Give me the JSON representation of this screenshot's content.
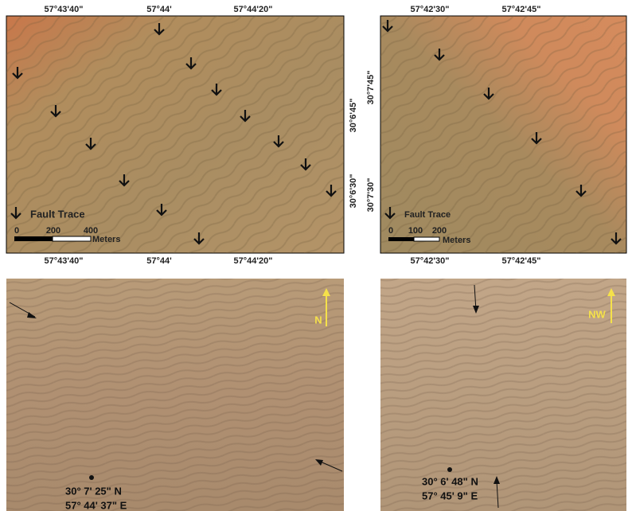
{
  "panels": [
    {
      "top_ticks": [
        "57°43'40\"",
        "57°44'",
        "57°44'20\""
      ],
      "bottom_ticks": [
        "57°43'40\"",
        "57°44'",
        "57°44'20\""
      ],
      "side_ticks": [
        "30°6'45\"",
        "30°6'30\""
      ],
      "legend": "Fault Trace",
      "scale_labels": [
        "0",
        "200",
        "400"
      ],
      "scale_unit": "Meters"
    },
    {
      "top_ticks": [
        "57°42'30\"",
        "57°42'45\""
      ],
      "bottom_ticks": [
        "57°42'30\"",
        "57°42'45\""
      ],
      "side_ticks": [
        "30°7'45\"",
        "30°7'30\""
      ],
      "legend": "Fault Trace",
      "scale_labels": [
        "0",
        "100",
        "200"
      ],
      "scale_unit": "Meters"
    },
    {
      "north": "N",
      "lat": "30° 7' 25\" N",
      "lon": "57° 44' 37\" E"
    },
    {
      "north": "NW",
      "lat": "30° 6' 48\" N",
      "lon": "57° 45' 9\" E"
    }
  ]
}
